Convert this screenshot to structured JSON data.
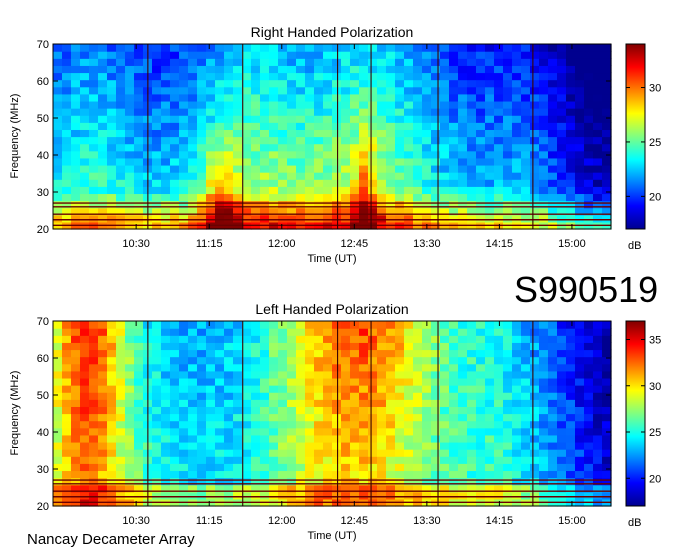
{
  "page": {
    "observation_id": "S990519",
    "footer": "Nancay Decameter Array"
  },
  "chart_data": [
    {
      "type": "heatmap",
      "title": "Right Handed Polarization",
      "xlabel": "Time (UT)",
      "ylabel": "Frequency (MHz)",
      "x_ticks": [
        "10:30",
        "11:15",
        "12:00",
        "12:45",
        "13:30",
        "14:15",
        "15:00"
      ],
      "y_ticks": [
        20,
        30,
        40,
        50,
        60,
        70
      ],
      "ylim": [
        20,
        70
      ],
      "colorbar": {
        "label": "dB",
        "ticks": [
          20,
          25,
          30
        ],
        "range": [
          17,
          34
        ]
      },
      "colorscale": [
        "#00008f",
        "#0000ff",
        "#0080ff",
        "#00ffff",
        "#80ff80",
        "#ffff00",
        "#ff8000",
        "#ff0000",
        "#800000"
      ]
    },
    {
      "type": "heatmap",
      "title": "Left Handed Polarization",
      "xlabel": "Time (UT)",
      "ylabel": "Frequency (MHz)",
      "x_ticks": [
        "10:30",
        "11:15",
        "12:00",
        "12:45",
        "13:30",
        "14:15",
        "15:00"
      ],
      "y_ticks": [
        20,
        30,
        40,
        50,
        60,
        70
      ],
      "ylim": [
        20,
        70
      ],
      "colorbar": {
        "label": "dB",
        "ticks": [
          20,
          25,
          30,
          35
        ],
        "range": [
          17,
          37
        ]
      },
      "colorscale": [
        "#00008f",
        "#0000ff",
        "#0080ff",
        "#00ffff",
        "#80ff80",
        "#ffff00",
        "#ff8000",
        "#ff0000",
        "#800000"
      ]
    }
  ]
}
